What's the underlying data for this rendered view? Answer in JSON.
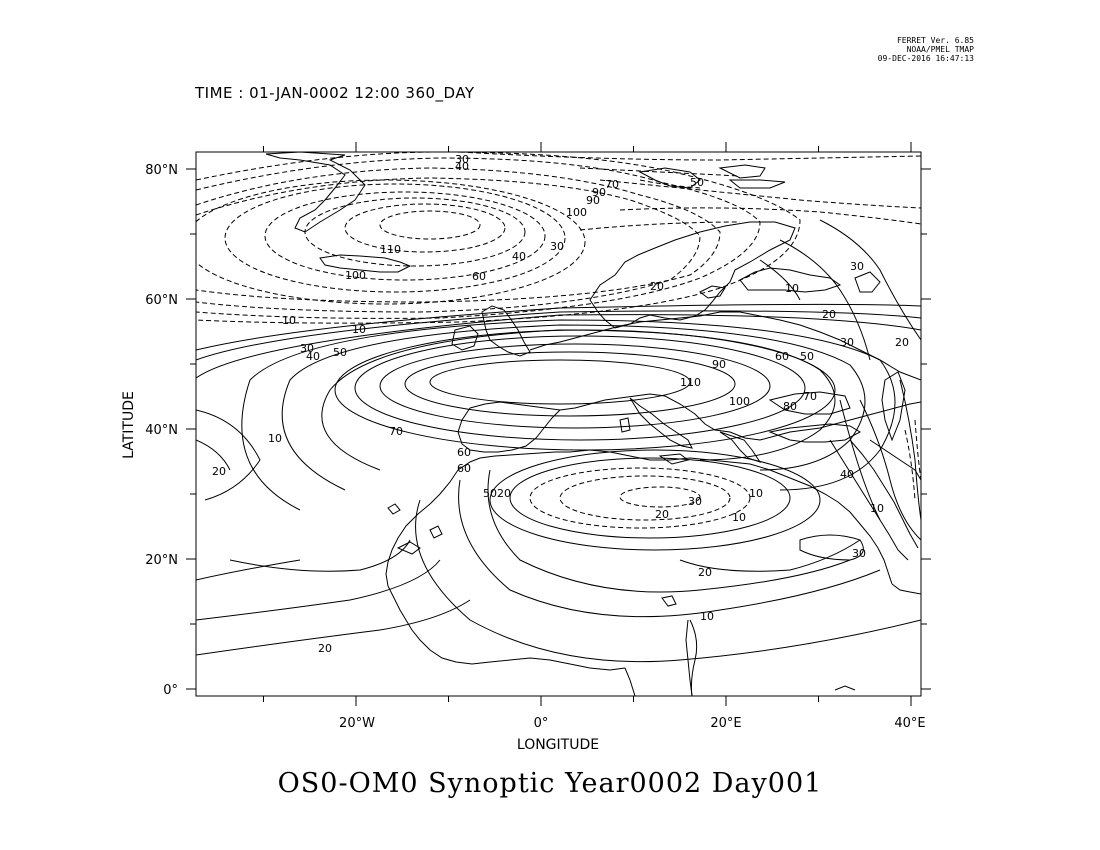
{
  "header": {
    "stamp_line1": "FERRET Ver. 6.85",
    "stamp_line2": "NOAA/PMEL TMAP",
    "stamp_line3": "09-DEC-2016 16:47:13",
    "time_label": "TIME : 01-JAN-0002 12:00 360_DAY"
  },
  "axes": {
    "xlabel": "LONGITUDE",
    "ylabel": "LATITUDE",
    "xticks": [
      "20°W",
      "0°",
      "20°E",
      "40°E"
    ],
    "yticks": [
      "0°",
      "20°N",
      "40°N",
      "60°N",
      "80°N"
    ]
  },
  "title": "OS0-OM0 Synoptic Year0002 Day001",
  "map": {
    "lon_range": [
      -37,
      41
    ],
    "lat_range": [
      -1,
      83
    ],
    "projection": "plate carree",
    "features": [
      "contour lines (solid positive, dashed negative)",
      "coastlines"
    ]
  },
  "contour_labels": {
    "negative": [
      "110",
      "100",
      "100",
      "90",
      "90",
      "70",
      "70",
      "60",
      "50",
      "50",
      "40",
      "30",
      "30",
      "20",
      "20",
      "10",
      "10"
    ],
    "positive": [
      "10",
      "10",
      "10",
      "10",
      "20",
      "20",
      "20",
      "20",
      "20",
      "20",
      "30",
      "30",
      "30",
      "30",
      "40",
      "40",
      "50",
      "50",
      "60",
      "60",
      "60",
      "70",
      "70",
      "80",
      "90",
      "100",
      "110"
    ]
  }
}
